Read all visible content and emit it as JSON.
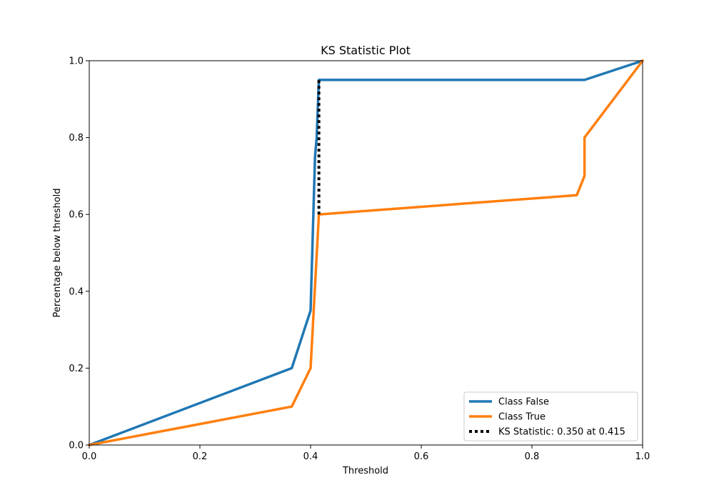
{
  "chart_data": {
    "type": "line",
    "title": "KS Statistic Plot",
    "xlabel": "Threshold",
    "ylabel": "Percentage below threshold",
    "xlim": [
      0.0,
      1.0
    ],
    "ylim": [
      0.0,
      1.0
    ],
    "x_ticks": [
      "0.0",
      "0.2",
      "0.4",
      "0.6",
      "0.8",
      "1.0"
    ],
    "y_ticks": [
      "0.0",
      "0.2",
      "0.4",
      "0.6",
      "0.8",
      "1.0"
    ],
    "grid": false,
    "legend_position": "lower-right",
    "series": [
      {
        "name": "Class False",
        "color": "#1f77b4",
        "style": "solid",
        "points": [
          [
            0.0,
            0.0
          ],
          [
            0.366,
            0.2
          ],
          [
            0.4,
            0.35
          ],
          [
            0.408,
            0.75
          ],
          [
            0.411,
            0.8
          ],
          [
            0.415,
            0.95
          ],
          [
            0.895,
            0.95
          ],
          [
            1.0,
            1.0
          ]
        ]
      },
      {
        "name": "Class True",
        "color": "#ff7f0e",
        "style": "solid",
        "points": [
          [
            0.0,
            0.0
          ],
          [
            0.366,
            0.1
          ],
          [
            0.4,
            0.2
          ],
          [
            0.415,
            0.6
          ],
          [
            0.881,
            0.65
          ],
          [
            0.895,
            0.7
          ],
          [
            0.895,
            0.8
          ],
          [
            1.0,
            1.0
          ]
        ]
      },
      {
        "name": "KS Statistic: 0.350 at 0.415",
        "color": "#000000",
        "style": "dotted",
        "points": [
          [
            0.415,
            0.6
          ],
          [
            0.415,
            0.95
          ]
        ]
      }
    ]
  }
}
